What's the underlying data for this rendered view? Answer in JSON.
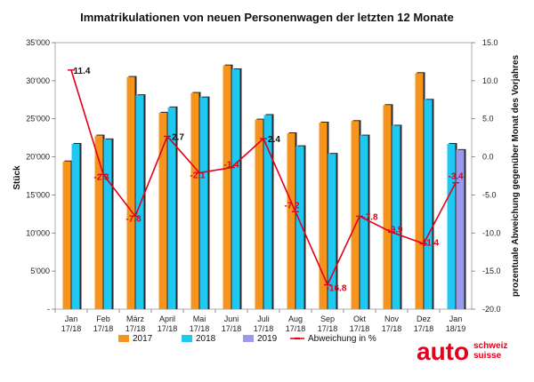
{
  "chart_data": {
    "type": "bar",
    "title": "Immatrikulationen von neuen Personenwagen der letzten 12 Monate",
    "ylabel": "Stück",
    "y2label": "prozentuale Abweichung gegenüber Monat des Vorjahres",
    "ylim": [
      0,
      35000
    ],
    "y2lim": [
      -20,
      15
    ],
    "y_ticks": [
      "-",
      "5'000",
      "10'000",
      "15'000",
      "20'000",
      "25'000",
      "30'000",
      "35'000"
    ],
    "y2_ticks": [
      "-20.0",
      "-15.0",
      "-10.0",
      "-5.0",
      "0.0",
      "5.0",
      "10.0",
      "15.0"
    ],
    "categories": [
      [
        "Jan",
        "17/18"
      ],
      [
        "Feb",
        "17/18"
      ],
      [
        "März",
        "17/18"
      ],
      [
        "April",
        "17/18"
      ],
      [
        "Mai",
        "17/18"
      ],
      [
        "Juni",
        "17/18"
      ],
      [
        "Juli",
        "17/18"
      ],
      [
        "Aug",
        "17/18"
      ],
      [
        "Sep",
        "17/18"
      ],
      [
        "Okt",
        "17/18"
      ],
      [
        "Nov",
        "17/18"
      ],
      [
        "Dez",
        "17/18"
      ],
      [
        "Jan",
        "18/19"
      ]
    ],
    "series": [
      {
        "name": "2017",
        "color": "#f7941d",
        "values": [
          19400,
          22800,
          30500,
          25800,
          28400,
          32000,
          24900,
          23100,
          24500,
          24700,
          26800,
          31000,
          null
        ]
      },
      {
        "name": "2018",
        "color": "#1ec8f0",
        "values": [
          21700,
          22300,
          28100,
          26500,
          27800,
          31500,
          25500,
          21400,
          20400,
          22800,
          24100,
          27500,
          21700
        ]
      },
      {
        "name": "2019",
        "color": "#9999ee",
        "values": [
          null,
          null,
          null,
          null,
          null,
          null,
          null,
          null,
          null,
          null,
          null,
          null,
          20900
        ]
      }
    ],
    "line_series": {
      "name": "Abweichung in %",
      "color": "#e2001a",
      "values": [
        11.4,
        -2.3,
        -7.8,
        2.7,
        -2.1,
        -1.4,
        2.4,
        -7.2,
        -16.8,
        -7.8,
        -9.9,
        -11.4,
        -3.4
      ],
      "labels": [
        "11.4",
        "-2.3",
        "-7.8",
        "2.7",
        "-2.1",
        "-1.4",
        "2.4",
        "-7.2",
        "-16.8",
        "-7.8",
        "-9.9",
        "-11.4",
        "-3.4"
      ]
    },
    "legend_position": "bottom",
    "grid": false
  },
  "logo": {
    "main": "auto",
    "line1": "schweiz",
    "line2": "suisse"
  }
}
